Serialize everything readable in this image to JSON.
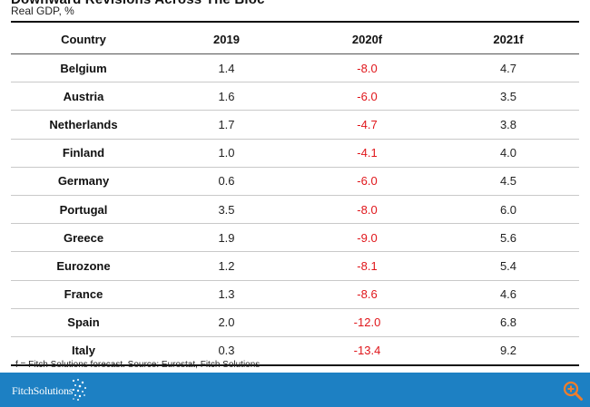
{
  "header": {
    "title": "Downward Revisions Across The Bloc",
    "subtitle": "Real GDP, %"
  },
  "chart_data": {
    "type": "table",
    "columns": [
      "Country",
      "2019",
      "2020f",
      "2021f"
    ],
    "rows": [
      [
        "Belgium",
        "1.4",
        "-8.0",
        "4.7"
      ],
      [
        "Austria",
        "1.6",
        "-6.0",
        "3.5"
      ],
      [
        "Netherlands",
        "1.7",
        "-4.7",
        "3.8"
      ],
      [
        "Finland",
        "1.0",
        "-4.1",
        "4.0"
      ],
      [
        "Germany",
        "0.6",
        "-6.0",
        "4.5"
      ],
      [
        "Portugal",
        "3.5",
        "-8.0",
        "6.0"
      ],
      [
        "Greece",
        "1.9",
        "-9.0",
        "5.6"
      ],
      [
        "Eurozone",
        "1.2",
        "-8.1",
        "5.4"
      ],
      [
        "France",
        "1.3",
        "-8.6",
        "4.6"
      ],
      [
        "Spain",
        "2.0",
        "-12.0",
        "6.8"
      ],
      [
        "Italy",
        "0.3",
        "-13.4",
        "9.2"
      ]
    ],
    "title": "Downward Revisions Across The Bloc",
    "subtitle": "Real GDP, %",
    "negative_color": "#e0161b"
  },
  "footnote": "f = Fitch Solutions forecast. Source: Eurostat, Fitch Solutions",
  "footer": {
    "brand": "FitchSolutions",
    "brand_color": "#1d80c3",
    "logo_icon": "dots-logo-icon",
    "zoom_icon": "zoom-in-icon"
  }
}
